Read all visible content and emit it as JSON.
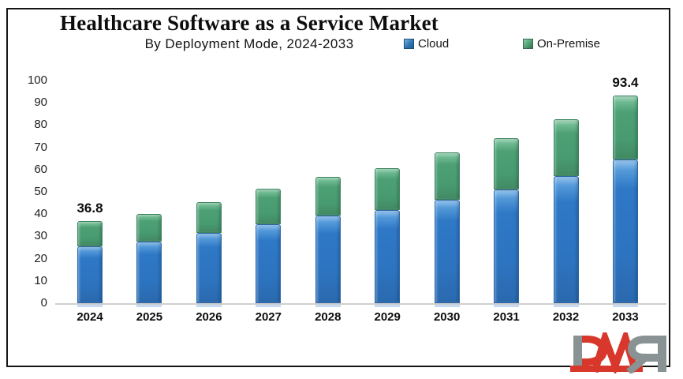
{
  "header": {
    "title": "Healthcare Software as a Service Market",
    "subtitle": "By Deployment Mode, 2024-2033"
  },
  "legend": [
    {
      "label": "Cloud",
      "color": "#2e75b6"
    },
    {
      "label": "On-Premise",
      "color": "#4ea072"
    }
  ],
  "chart_data": {
    "type": "bar",
    "stacked": true,
    "title": "Healthcare Software as a Service Market",
    "subtitle": "By Deployment Mode, 2024-2033",
    "categories": [
      "2024",
      "2025",
      "2026",
      "2027",
      "2028",
      "2029",
      "2030",
      "2031",
      "2032",
      "2033"
    ],
    "series": [
      {
        "name": "Cloud",
        "color": "#2e78c6",
        "values": [
          25.5,
          27.8,
          31.5,
          35.5,
          39.2,
          42.0,
          46.6,
          51.0,
          57.0,
          64.6
        ]
      },
      {
        "name": "On-Premise",
        "color": "#4d9f74",
        "values": [
          11.3,
          12.4,
          14.0,
          16.0,
          17.6,
          18.6,
          21.2,
          23.2,
          25.6,
          28.8
        ]
      }
    ],
    "totals": [
      36.8,
      40.2,
      45.5,
      51.5,
      56.8,
      60.6,
      67.8,
      74.2,
      82.6,
      93.4
    ],
    "data_labels": {
      "0": "36.8",
      "9": "93.4"
    },
    "xlabel": "",
    "ylabel": "",
    "ylim": [
      0,
      100
    ],
    "yticks": [
      0,
      10,
      20,
      30,
      40,
      50,
      60,
      70,
      80,
      90,
      100
    ],
    "grid": false,
    "legend_position": "top-right"
  },
  "branding": {
    "logo_text": "DMR",
    "logo_red": "#d8372b",
    "logo_gray": "#8a9394"
  }
}
